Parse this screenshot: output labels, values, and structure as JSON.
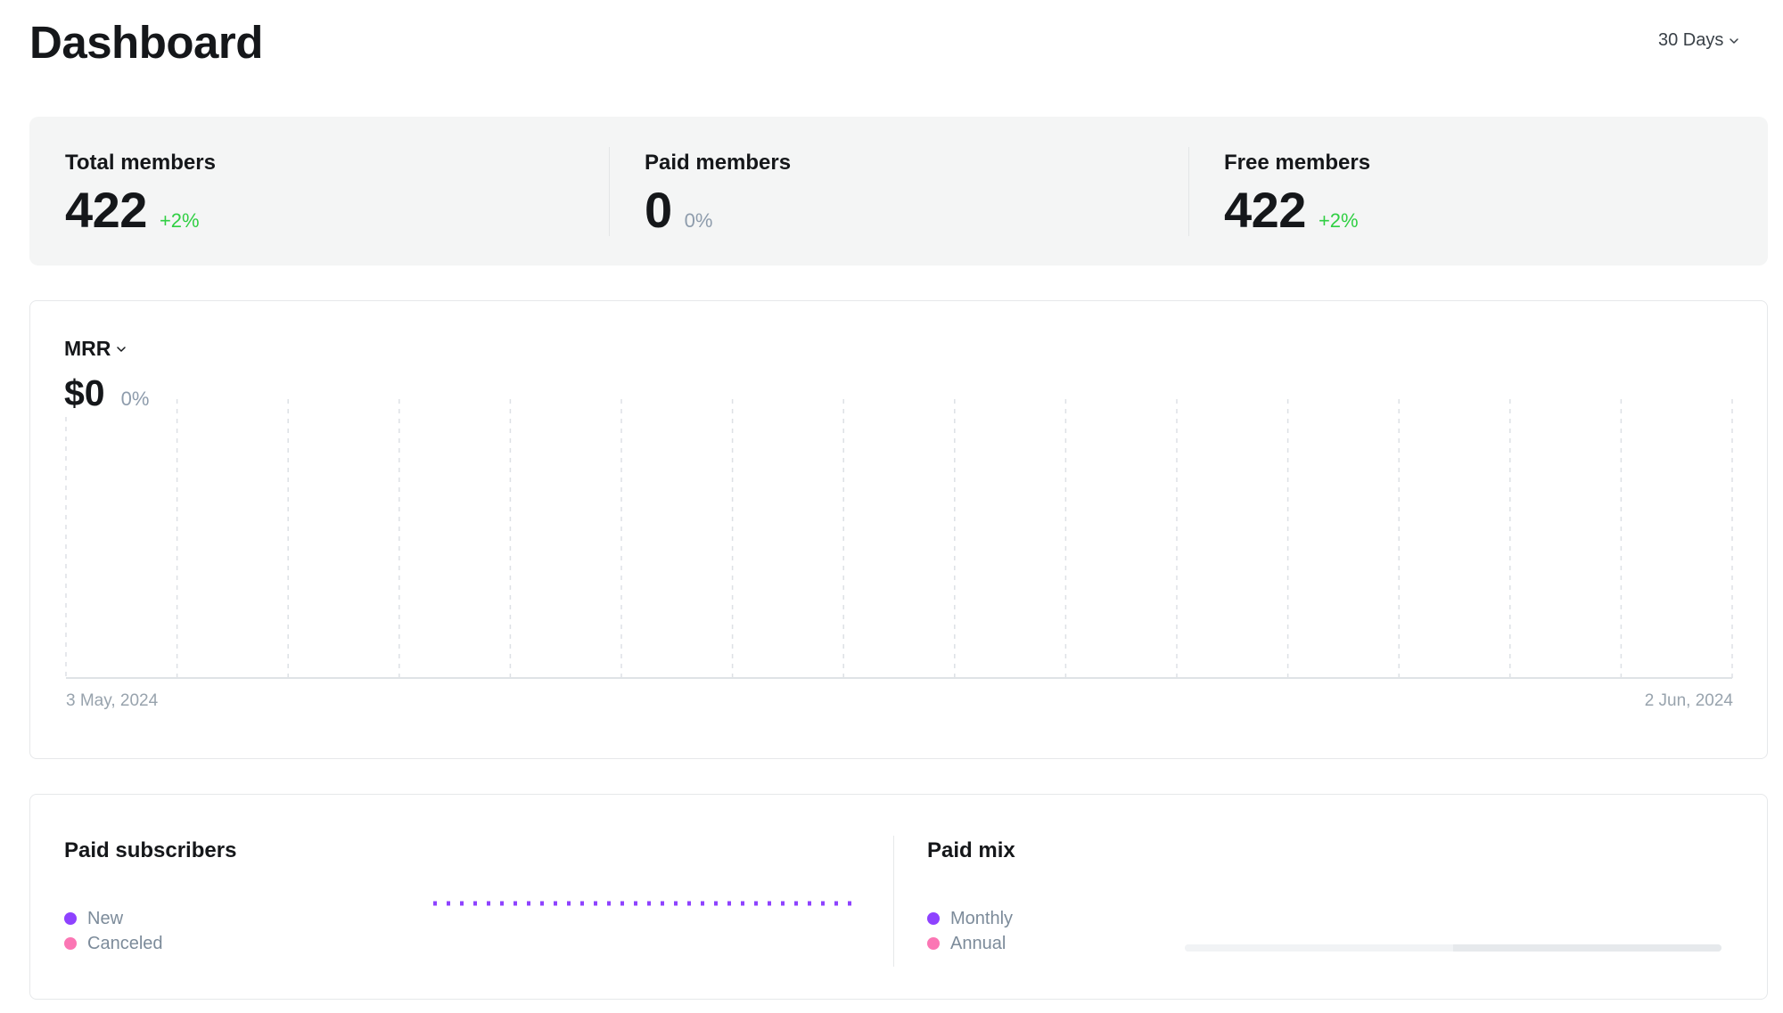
{
  "header": {
    "title": "Dashboard",
    "range_label": "30 Days"
  },
  "stats": [
    {
      "label": "Total members",
      "value": "422",
      "delta": "+2%",
      "trend": "up"
    },
    {
      "label": "Paid members",
      "value": "0",
      "delta": "0%",
      "trend": "flat"
    },
    {
      "label": "Free members",
      "value": "422",
      "delta": "+2%",
      "trend": "up"
    }
  ],
  "mrr": {
    "metric_label": "MRR",
    "value": "$0",
    "delta": "0%",
    "start_date": "3 May, 2024",
    "end_date": "2 Jun, 2024"
  },
  "chart_data": {
    "type": "line",
    "x": [
      "3 May, 2024",
      "2 Jun, 2024"
    ],
    "series": [
      {
        "values": [
          0,
          0
        ]
      }
    ],
    "grid": true,
    "colors": {
      "start": "#e9358e",
      "end": "#8e42ff"
    }
  },
  "paid_subscribers": {
    "title": "Paid subscribers",
    "legend": [
      {
        "label": "New",
        "color": "#8e42ff"
      },
      {
        "label": "Canceled",
        "color": "#fb76b4"
      }
    ]
  },
  "paid_mix": {
    "title": "Paid mix",
    "legend": [
      {
        "label": "Monthly",
        "color": "#8e42ff"
      },
      {
        "label": "Annual",
        "color": "#fb76b4"
      }
    ]
  },
  "colors": {
    "positive": "#30cf43",
    "muted": "#8e9cac",
    "accent_purple": "#8e42ff",
    "accent_pink": "#fb76b4"
  },
  "icons": {
    "range_chevron": "chevron-down-icon",
    "metric_chevron": "chevron-down-icon"
  }
}
